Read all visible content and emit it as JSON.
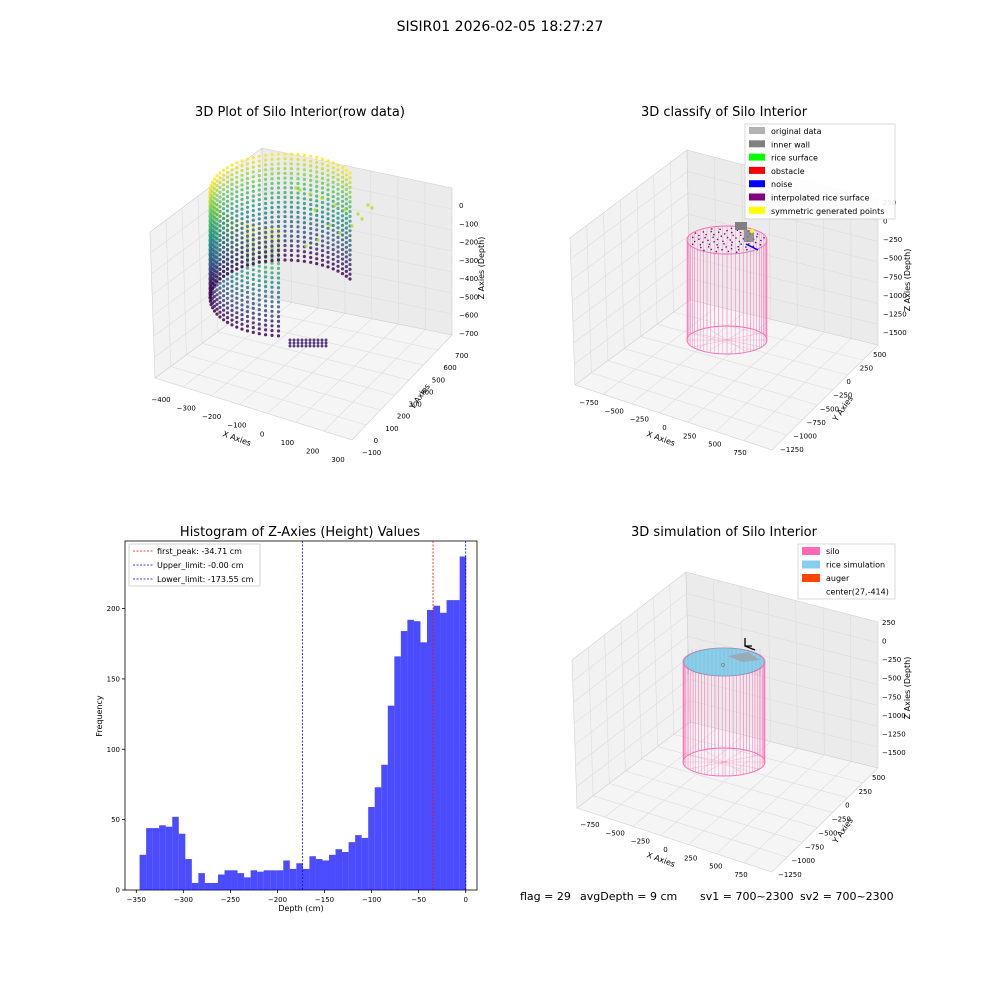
{
  "figure": {
    "suptitle": "SISIR01 2026-02-05 18:27:27",
    "footer": {
      "flag": "flag = 29",
      "avg_depth": "avgDepth = 9 cm",
      "sv1": "sv1 = 700~2300",
      "sv2": "sv2 = 700~2300"
    }
  },
  "chart_data": [
    {
      "type": "scatter",
      "projection": "3d",
      "title": "3D Plot of Silo Interior(row data)",
      "xlabel": "X Axies",
      "ylabel": "Y Axies",
      "zlabel": "Z Axies (Depth)",
      "x_ticks": [
        "−400",
        "−300",
        "−200",
        "−100",
        "0",
        "100",
        "200",
        "300"
      ],
      "y_ticks": [
        "−100",
        "0",
        "100",
        "200",
        "300",
        "400",
        "500",
        "600",
        "700"
      ],
      "z_ticks": [
        "0",
        "−100",
        "−200",
        "−300",
        "−400",
        "−500",
        "−600",
        "−700"
      ],
      "xlim": [
        -420,
        320
      ],
      "ylim": [
        -130,
        740
      ],
      "zlim": [
        -760,
        60
      ],
      "colormap": "viridis (color by depth)",
      "grid": true
    },
    {
      "type": "scatter",
      "projection": "3d",
      "title": "3D classify of Silo Interior",
      "xlabel": "X Axies",
      "ylabel": "Y Axies",
      "zlabel": "Z Axies (Depth)",
      "x_ticks": [
        "−750",
        "−500",
        "−250",
        "0",
        "250",
        "500",
        "750"
      ],
      "y_ticks": [
        "−1250",
        "−1000",
        "−750",
        "−500",
        "−250",
        "0",
        "250",
        "500"
      ],
      "z_ticks": [
        "250",
        "0",
        "−250",
        "−500",
        "−750",
        "−1000",
        "−1250",
        "−1500"
      ],
      "legend": [
        {
          "name": "original data",
          "color": "#b3b3b3"
        },
        {
          "name": "inner wall",
          "color": "#808080"
        },
        {
          "name": "rice surface",
          "color": "#00ff00"
        },
        {
          "name": "obstacle",
          "color": "#ff0000"
        },
        {
          "name": "noise",
          "color": "#0000ff"
        },
        {
          "name": "interpolated rice surface",
          "color": "#800080"
        },
        {
          "name": "symmetric generated points",
          "color": "#ffff00"
        }
      ],
      "legend_position": "top-right",
      "silo_color": "#ff69b4",
      "grid": true
    },
    {
      "type": "bar",
      "title": "Histogram of Z-Axies (Height) Values",
      "xlabel": "Depth (cm)",
      "ylabel": "Frequency",
      "x_ticks": [
        -350,
        -300,
        -250,
        -200,
        -150,
        -100,
        -50,
        0
      ],
      "y_ticks": [
        0,
        50,
        100,
        150,
        200
      ],
      "xlim": [
        -362,
        12
      ],
      "ylim": [
        0,
        248
      ],
      "bin_start": -346.5,
      "bin_width": 6.94,
      "values": [
        25,
        44,
        44,
        46,
        45,
        52,
        40,
        22,
        5,
        12,
        5,
        5,
        11,
        14,
        14,
        12,
        9,
        14,
        13,
        14,
        14,
        14,
        21,
        15,
        19,
        15,
        24,
        22,
        21,
        25,
        29,
        27,
        34,
        39,
        37,
        59,
        73,
        89,
        131,
        166,
        184,
        192,
        191,
        176,
        199,
        202,
        197,
        206,
        206,
        237
      ],
      "bar_color": "#0000ff",
      "bar_alpha": 0.7,
      "vlines": [
        {
          "name": "first_peak: -34.71 cm",
          "x": -34.71,
          "color": "#ff0000"
        },
        {
          "name": "Upper_limit: -0.00 cm",
          "x": 0,
          "color": "#0000ff"
        },
        {
          "name": "Lower_limit: -173.55 cm",
          "x": -173.55,
          "color": "#0000ff"
        }
      ],
      "legend_position": "top-left",
      "grid": false
    },
    {
      "type": "scatter",
      "projection": "3d",
      "title": "3D simulation of Silo Interior",
      "xlabel": "X Axies",
      "ylabel": "Y Axies",
      "zlabel": "Z Axies (Depth)",
      "x_ticks": [
        "−750",
        "−500",
        "−250",
        "0",
        "250",
        "500",
        "750"
      ],
      "y_ticks": [
        "−1250",
        "−1000",
        "−750",
        "−500",
        "−250",
        "0",
        "250",
        "500"
      ],
      "z_ticks": [
        "250",
        "0",
        "−250",
        "−500",
        "−750",
        "−1000",
        "−1250",
        "−1500"
      ],
      "legend": [
        {
          "name": "silo",
          "color": "#ff69b4",
          "kind": "patch"
        },
        {
          "name": "rice simulation",
          "color": "#87ceeb",
          "kind": "patch"
        },
        {
          "name": "auger",
          "color": "#ff4500",
          "kind": "patch"
        },
        {
          "name": "center(27,-414)",
          "color": "#ffffff",
          "kind": "none"
        }
      ],
      "legend_position": "top-right",
      "grid": true
    }
  ]
}
